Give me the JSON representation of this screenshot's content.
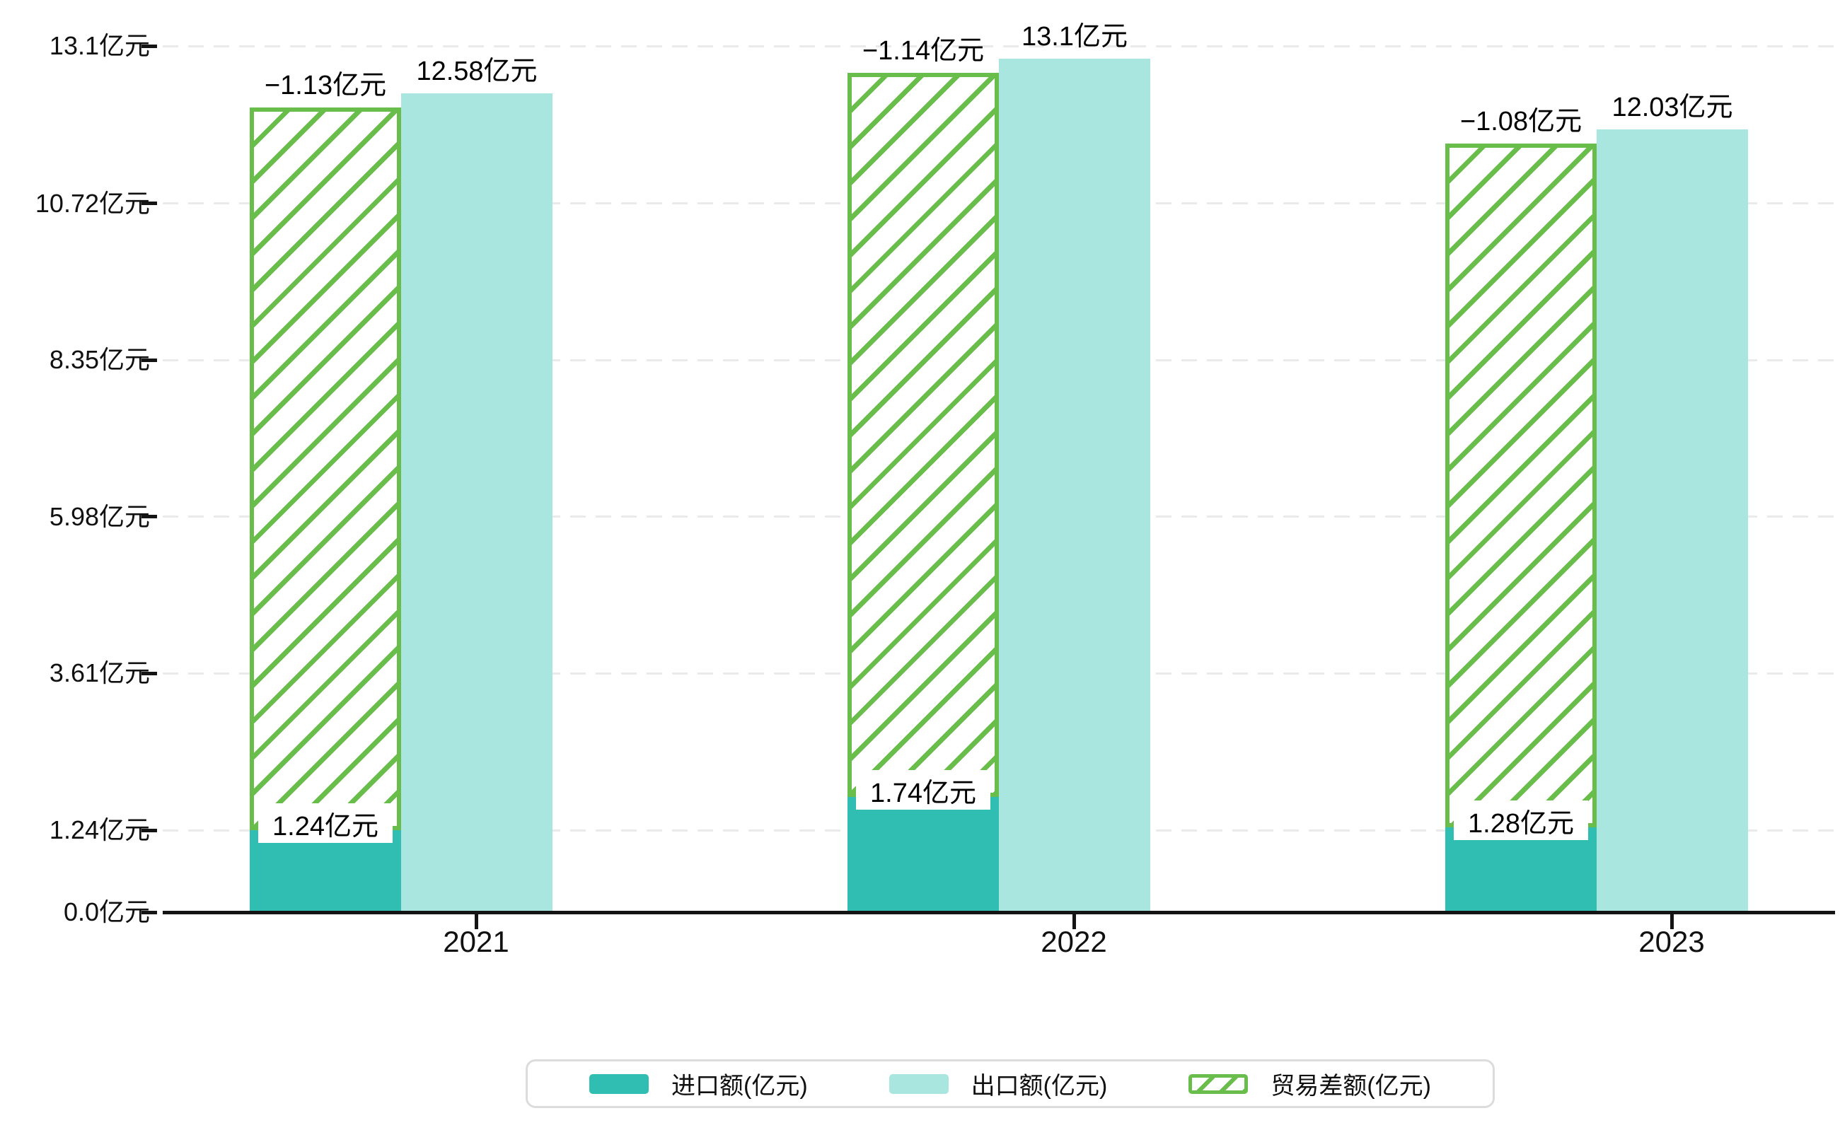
{
  "chart_data": {
    "type": "bar",
    "title": "",
    "categories": [
      "2021",
      "2022",
      "2023"
    ],
    "series": [
      {
        "name": "进口额(亿元)",
        "style": "solid",
        "color": "#30BEB2",
        "values": [
          1.24,
          1.74,
          1.28
        ],
        "data_labels": [
          "1.24亿元",
          "1.74亿元",
          "1.28亿元"
        ]
      },
      {
        "name": "出口额(亿元)",
        "style": "solid",
        "color": "#A9E6E0",
        "values": [
          12.58,
          13.1,
          12.03
        ],
        "data_labels": [
          "12.58亿元",
          "13.1亿元",
          "12.03亿元"
        ]
      },
      {
        "name": "贸易差额(亿元)",
        "style": "hatched-outline",
        "color": "#69BE4B",
        "values": [
          -1.13,
          -1.14,
          -1.08
        ],
        "data_labels": [
          "−1.13亿元",
          "−1.14亿元",
          "−1.08亿元"
        ],
        "note": "hatched floating bar spanning from import-bar top up to export-bar top"
      }
    ],
    "y_axis": {
      "unit": "亿元",
      "min": 0,
      "max": 13.1,
      "ticks": [
        {
          "v": 0,
          "label": "0.0亿元"
        },
        {
          "v": 1.24,
          "label": "1.24亿元"
        },
        {
          "v": 3.61,
          "label": "3.61亿元"
        },
        {
          "v": 5.98,
          "label": "5.98亿元"
        },
        {
          "v": 8.35,
          "label": "8.35亿元"
        },
        {
          "v": 10.72,
          "label": "10.72亿元"
        },
        {
          "v": 13.1,
          "label": "13.1亿元"
        }
      ]
    },
    "x_axis": {
      "labels": [
        "2021",
        "2022",
        "2023"
      ]
    },
    "legend": {
      "position": "bottom",
      "items": [
        "进口额(亿元)",
        "出口额(亿元)",
        "贸易差额(亿元)"
      ]
    },
    "grid": {
      "horizontal": true,
      "line_style": "dashed"
    }
  },
  "colors": {
    "import_bar": "#30BEB2",
    "export_bar": "#A9E6E0",
    "balance_hatch": "#69BE4B",
    "axis": "#141414",
    "grid_line": "#EAEAEA",
    "legend_border": "#DCDCDC",
    "text": "#111111",
    "background": "#FFFFFF"
  }
}
